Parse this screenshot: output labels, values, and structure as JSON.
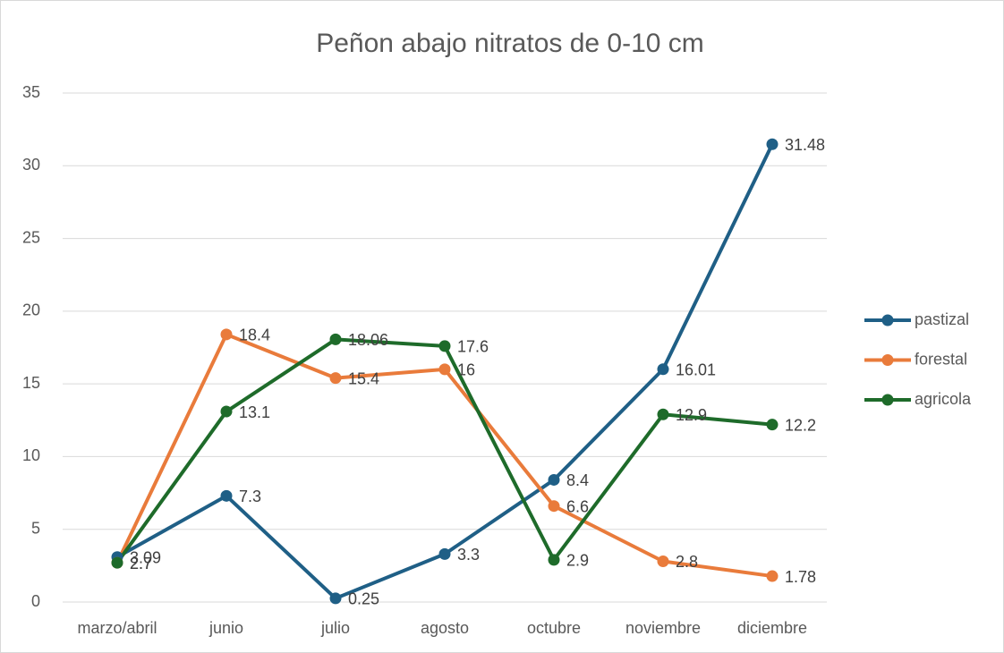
{
  "chart_data": {
    "type": "line",
    "title": "Peñon abajo nitratos de 0-10 cm",
    "categories": [
      "marzo/abril",
      "junio",
      "julio",
      "agosto",
      "octubre",
      "noviembre",
      "diciembre"
    ],
    "series": [
      {
        "name": "pastizal",
        "color": "#1f5f86",
        "values": [
          3.09,
          7.3,
          0.25,
          3.3,
          8.4,
          16.01,
          31.48
        ]
      },
      {
        "name": "forestal",
        "color": "#e97b3b",
        "values": [
          2.7,
          18.4,
          15.4,
          16,
          6.6,
          2.8,
          1.78
        ]
      },
      {
        "name": "agricola",
        "color": "#1e6b2a",
        "values": [
          2.7,
          13.1,
          18.06,
          17.6,
          2.9,
          12.9,
          12.2
        ]
      }
    ],
    "ylim": [
      0,
      35
    ],
    "yticks": [
      0,
      5,
      10,
      15,
      20,
      25,
      30,
      35
    ],
    "grid": true,
    "legend": "right"
  }
}
